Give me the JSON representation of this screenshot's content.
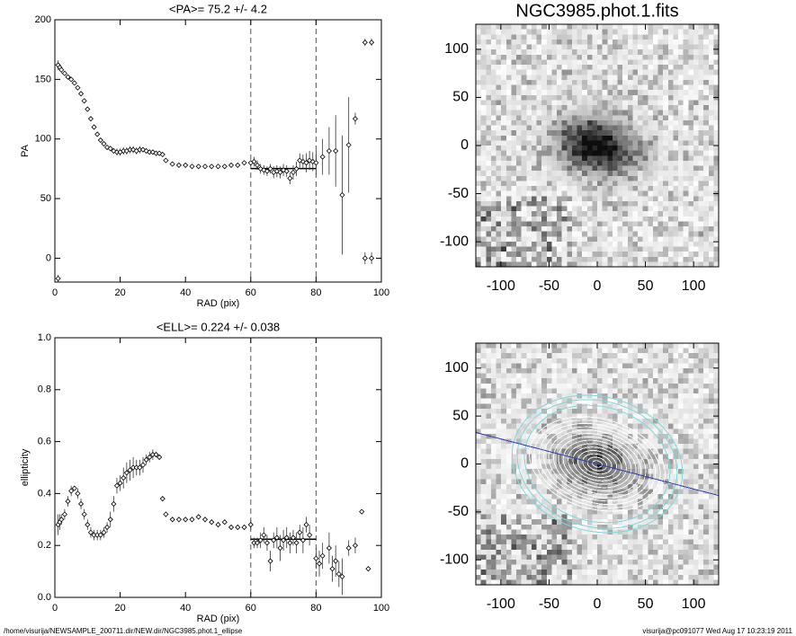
{
  "chart_data": [
    {
      "type": "scatter",
      "title": "<PA>=  75.2 +/-   4.2",
      "x_label": "RAD (pix)",
      "y_label": "PA",
      "xlim": [
        0,
        100
      ],
      "xticks": [
        0,
        20,
        40,
        60,
        80,
        100
      ],
      "ylim": [
        -20,
        200
      ],
      "yticks": [
        0,
        50,
        100,
        150,
        200
      ],
      "vlines": [
        60,
        80
      ],
      "mean_line": {
        "y": 75.2,
        "x": [
          60,
          80
        ]
      },
      "x": [
        1,
        1.5,
        2,
        3,
        4,
        5,
        6,
        7,
        8,
        9,
        10,
        11,
        12,
        13,
        14,
        15,
        16,
        17,
        18,
        19,
        20,
        21,
        22,
        23,
        24,
        25,
        26,
        27,
        28,
        29,
        30,
        31,
        32,
        33,
        34,
        36,
        38,
        40,
        42,
        44,
        46,
        48,
        50,
        52,
        54,
        56,
        58,
        60,
        61,
        62,
        63,
        64,
        65,
        66,
        67,
        68,
        69,
        70,
        71,
        72,
        73,
        74,
        75,
        76,
        77,
        78,
        79,
        80,
        82,
        84,
        86,
        88,
        90,
        92,
        95,
        97,
        95,
        97,
        1
      ],
      "values": [
        162,
        160,
        158,
        155,
        152,
        150,
        147,
        143,
        138,
        132,
        125,
        117,
        110,
        104,
        99,
        96,
        93,
        92,
        90,
        89,
        89,
        90,
        90,
        91,
        91,
        90,
        91,
        91,
        90,
        89,
        89,
        88,
        88,
        87,
        82,
        79,
        78,
        78,
        77,
        77,
        77,
        77,
        77,
        77,
        78,
        78,
        80,
        80,
        81,
        78,
        75,
        74,
        73,
        75,
        72,
        73,
        72,
        74,
        73,
        67,
        72,
        75,
        82,
        81,
        80,
        82,
        81,
        80,
        85,
        90,
        90,
        53,
        95,
        117,
        181,
        181,
        0,
        0,
        -17
      ],
      "errors": [
        4,
        3,
        3,
        2,
        2,
        2,
        2,
        2,
        2,
        2,
        2,
        2,
        2,
        2,
        2,
        2,
        2,
        2,
        2,
        3,
        3,
        3,
        3,
        3,
        3,
        3,
        3,
        2,
        2,
        2,
        2,
        2,
        2,
        2,
        1,
        1,
        1,
        1,
        1,
        1,
        1,
        1,
        1,
        1,
        1,
        1,
        2,
        2,
        4,
        4,
        4,
        4,
        4,
        4,
        5,
        5,
        5,
        5,
        5,
        5,
        6,
        6,
        6,
        6,
        8,
        8,
        8,
        10,
        15,
        20,
        30,
        50,
        40,
        5,
        3,
        3,
        5,
        5,
        3
      ]
    },
    {
      "type": "scatter",
      "title": "<ELL>= 0.224 +/-  0.038",
      "x_label": "RAD (pix)",
      "y_label": "ellipticity",
      "xlim": [
        0,
        100
      ],
      "xticks": [
        0,
        20,
        40,
        60,
        80,
        100
      ],
      "ylim": [
        0,
        1
      ],
      "yticks": [
        {
          "value": 0,
          "label": "0.0"
        },
        0.2,
        0.4,
        0.6,
        0.8,
        {
          "value": 1,
          "label": "1.0"
        }
      ],
      "vlines": [
        60,
        80
      ],
      "mean_line": {
        "y": 0.224,
        "x": [
          60,
          80
        ]
      },
      "x": [
        1,
        1.5,
        2,
        3,
        4,
        5,
        6,
        7,
        8,
        9,
        10,
        11,
        12,
        13,
        14,
        15,
        16,
        17,
        18,
        19,
        20,
        21,
        22,
        23,
        24,
        25,
        26,
        27,
        28,
        29,
        30,
        31,
        32,
        33,
        34,
        36,
        38,
        40,
        42,
        44,
        46,
        48,
        50,
        52,
        54,
        56,
        58,
        60,
        61,
        62,
        63,
        64,
        65,
        66,
        67,
        68,
        69,
        70,
        71,
        72,
        73,
        74,
        75,
        76,
        77,
        78,
        80,
        81,
        82,
        84,
        85,
        86,
        87,
        88,
        90,
        92,
        94,
        96
      ],
      "values": [
        0.28,
        0.29,
        0.3,
        0.32,
        0.37,
        0.41,
        0.42,
        0.4,
        0.36,
        0.32,
        0.28,
        0.25,
        0.24,
        0.24,
        0.24,
        0.25,
        0.27,
        0.3,
        0.36,
        0.43,
        0.44,
        0.46,
        0.48,
        0.49,
        0.5,
        0.5,
        0.5,
        0.51,
        0.53,
        0.54,
        0.55,
        0.55,
        0.54,
        0.38,
        0.32,
        0.3,
        0.3,
        0.3,
        0.3,
        0.31,
        0.3,
        0.29,
        0.28,
        0.29,
        0.27,
        0.27,
        0.27,
        0.28,
        0.21,
        0.21,
        0.22,
        0.24,
        0.21,
        0.14,
        0.22,
        0.23,
        0.19,
        0.22,
        0.23,
        0.21,
        0.23,
        0.21,
        0.25,
        0.22,
        0.28,
        0.24,
        0.15,
        0.13,
        0.16,
        0.19,
        0.11,
        0.14,
        0.09,
        0.08,
        0.19,
        0.2,
        0.33,
        0.11
      ],
      "errors": [
        0.04,
        0.03,
        0.02,
        0.02,
        0.02,
        0.02,
        0.01,
        0.02,
        0.02,
        0.02,
        0.02,
        0.02,
        0.02,
        0.02,
        0.02,
        0.02,
        0.02,
        0.03,
        0.03,
        0.03,
        0.03,
        0.04,
        0.04,
        0.04,
        0.04,
        0.03,
        0.03,
        0.03,
        0.02,
        0.02,
        0.02,
        0.01,
        0.01,
        0.01,
        0.01,
        0.01,
        0.01,
        0.01,
        0.01,
        0.01,
        0.01,
        0.01,
        0.01,
        0.01,
        0.01,
        0.01,
        0.01,
        0.02,
        0.02,
        0.02,
        0.03,
        0.03,
        0.03,
        0.04,
        0.03,
        0.04,
        0.05,
        0.04,
        0.04,
        0.04,
        0.03,
        0.04,
        0.03,
        0.05,
        0.03,
        0.04,
        0.04,
        0.05,
        0.05,
        0.06,
        0.05,
        0.06,
        0.05,
        0.07,
        0.03,
        0.03,
        0.01,
        0.01
      ]
    },
    {
      "type": "image",
      "title": "NGC3985.phot.1.fits",
      "xlim": [
        -126,
        126
      ],
      "ylim": [
        -126,
        126
      ],
      "xticks": [
        -100,
        -50,
        0,
        50,
        100
      ],
      "yticks": [
        -100,
        -50,
        0,
        50,
        100
      ]
    },
    {
      "type": "image",
      "overlay": true,
      "xlim": [
        -126,
        126
      ],
      "ylim": [
        -126,
        126
      ],
      "xticks": [
        -100,
        -50,
        0,
        50,
        100
      ],
      "yticks": [
        -100,
        -50,
        0,
        50,
        100
      ]
    }
  ],
  "footer": {
    "left": "/home/visurija/NEWSAMPLE_200711.dir/NEW.dir/NGC3985.phot.1_ellipse",
    "right": "visurija@pc091077  Wed Aug 17 10:23:19 2011"
  }
}
